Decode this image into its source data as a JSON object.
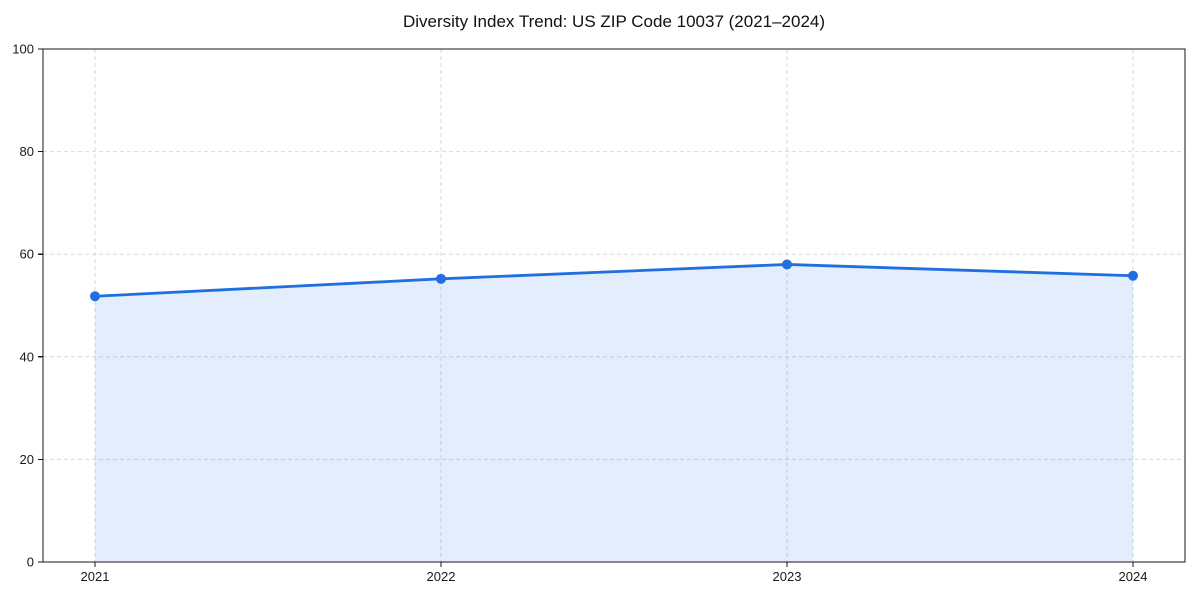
{
  "chart_data": {
    "type": "area",
    "title": "Diversity Index Trend: US ZIP Code 10037 (2021–2024)",
    "categories": [
      "2021",
      "2022",
      "2023",
      "2024"
    ],
    "series": [
      {
        "name": "Diversity Index",
        "values": [
          51.8,
          55.2,
          58.0,
          55.8
        ]
      }
    ],
    "xlabel": "",
    "ylabel": "",
    "ylim": [
      0,
      100
    ],
    "yticks": [
      0,
      20,
      40,
      60,
      80,
      100
    ],
    "grid": true,
    "grid_style": "dashed",
    "legend": "none",
    "marker": "circle",
    "colors": {
      "line": "#1f6fe0",
      "marker": "#1f6fe0",
      "area": "#1f6fe0",
      "area_opacity": 0.12,
      "grid": "#d9d9d9",
      "spine": "#1a1a1a",
      "text": "#1a1a1a",
      "background": "#ffffff"
    }
  }
}
